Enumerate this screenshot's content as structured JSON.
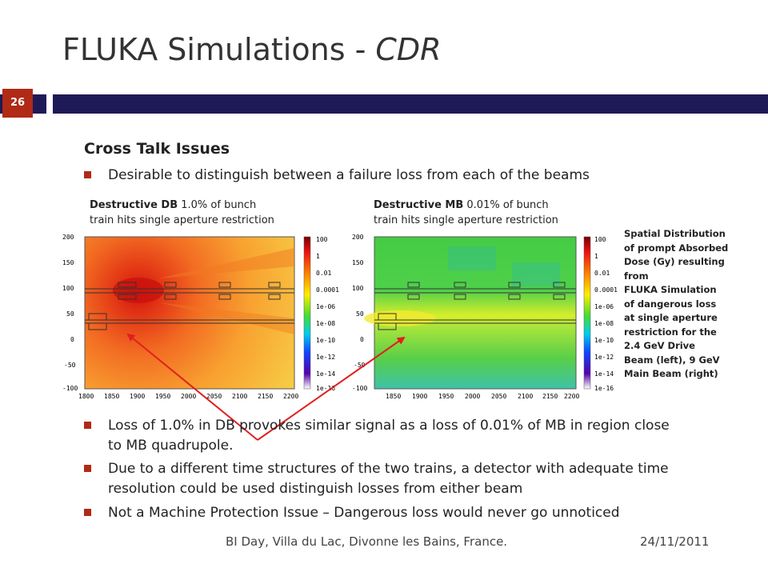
{
  "slide": {
    "title": "FLUKA Simulations - ",
    "title_italic": "CDR",
    "slide_number": "26",
    "heading": "Cross Talk Issues",
    "bullet_1": "Desirable to distinguish between a failure loss from each of the beams",
    "caption_left_bold": "Destructive DB",
    "caption_left_rest": " 1.0% of bunch",
    "caption_left_line2": "train hits single aperture restriction",
    "caption_right_bold": "Destructive MB",
    "caption_right_rest": " 0.01% of bunch",
    "caption_right_line2": "train hits single aperture restriction",
    "side_note": [
      "Spatial Distribution",
      "of prompt Absorbed",
      "Dose (Gy) resulting",
      "from",
      "FLUKA Simulation",
      "of dangerous loss",
      "at single aperture",
      "restriction for the",
      "2.4 GeV Drive",
      "Beam (left), 9 GeV",
      "Main Beam (right)"
    ],
    "bullet_2": "Loss of 1.0% in DB provokes similar signal as a loss of 0.01% of MB in region close to MB quadrupole.",
    "bullet_3": "Due to a different time structures of the two trains, a detector with adequate time resolution could be used distinguish losses from either beam",
    "bullet_4": "Not a Machine Protection Issue – Dangerous loss would never go unnoticed",
    "footer_left": "BI Day, Villa du Lac, Divonne les Bains, France.",
    "footer_right": "24/11/2011"
  },
  "left_plot": {
    "y_ticks": [
      "200",
      "150",
      "100",
      "50",
      "0",
      "-50",
      "-100"
    ],
    "x_ticks": [
      "1800",
      "1850",
      "1900",
      "1950",
      "2000",
      "2050",
      "2100",
      "2150",
      "2200"
    ],
    "colorbar_labels": [
      "100",
      "1",
      "0.01",
      "0.0001",
      "1e-06",
      "1e-08",
      "1e-10",
      "1e-12",
      "1e-14",
      "1e-16"
    ]
  },
  "right_plot": {
    "y_ticks": [
      "200",
      "150",
      "100",
      "50",
      "0",
      "-50",
      "-100"
    ],
    "x_ticks": [
      "1850",
      "1900",
      "1950",
      "2000",
      "2050",
      "2100",
      "2150",
      "2200"
    ],
    "colorbar_labels": [
      "100",
      "1",
      "0.01",
      "0.0001",
      "1e-06",
      "1e-08",
      "1e-10",
      "1e-12",
      "1e-14",
      "1e-16"
    ]
  },
  "colors": {
    "navy_bar": "#1e1a57",
    "accent_red": "#b02a16",
    "arrow_red": "#e02020"
  }
}
